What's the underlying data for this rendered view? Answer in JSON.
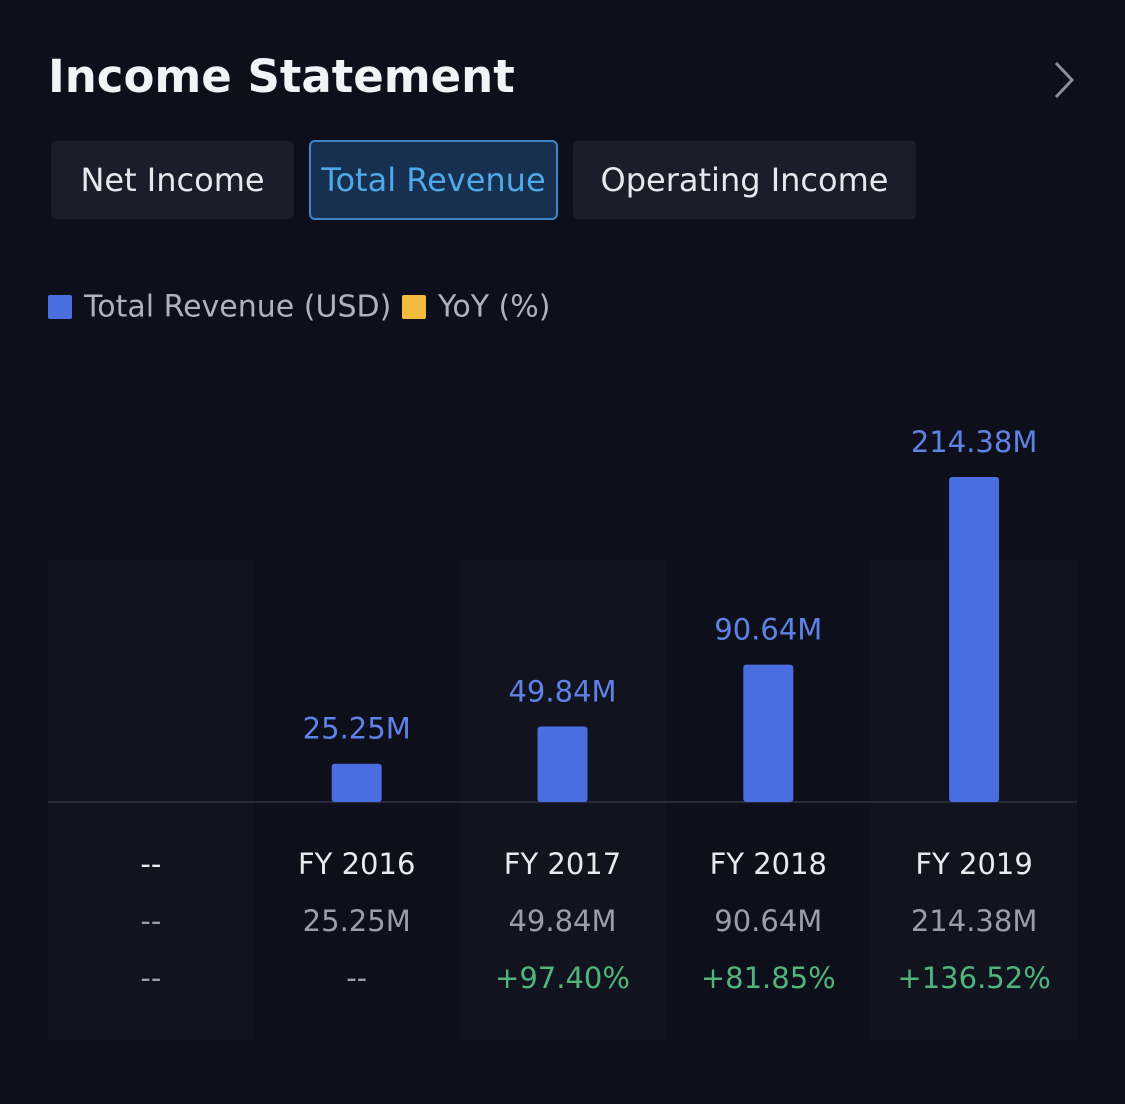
{
  "header": {
    "title": "Income Statement"
  },
  "tabs": [
    "Net Income",
    "Total Revenue",
    "Operating Income"
  ],
  "selected_tab": 1,
  "chart_data": {
    "type": "bar",
    "categories": [
      "--",
      "FY 2016",
      "FY 2017",
      "FY 2018",
      "FY 2019"
    ],
    "series": [
      {
        "name": "Total Revenue (USD)",
        "color": "#4a6ee0",
        "values": [
          null,
          25250000,
          49840000,
          90640000,
          214380000
        ],
        "value_labels": [
          "--",
          "25.25M",
          "49.84M",
          "90.64M",
          "214.38M"
        ]
      },
      {
        "name": "YoY (%)",
        "color": "#f2bb3e",
        "values": [
          null,
          null,
          97.4,
          81.85,
          136.52
        ],
        "value_labels": [
          "--",
          "--",
          "+97.40%",
          "+81.85%",
          "+136.52%"
        ]
      }
    ]
  }
}
